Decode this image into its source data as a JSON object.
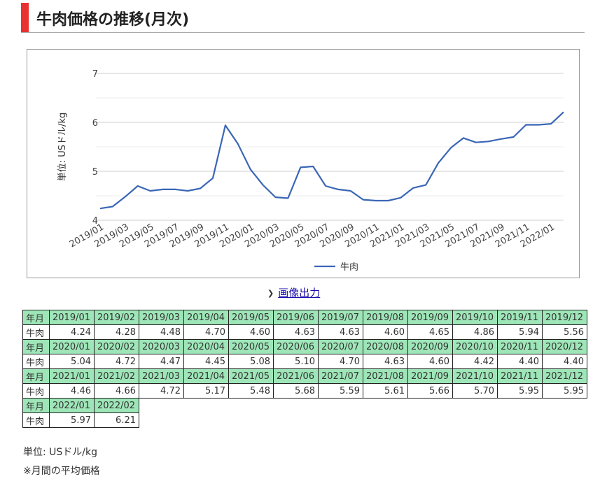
{
  "page_title": "牛肉価格の推移(月次)",
  "export_label": "画像出力",
  "table_header_label": "年月",
  "table_row_label": "牛肉",
  "unit_note": "単位: USドル/kg",
  "avg_note": "※月間の平均価格",
  "colors": {
    "accent": "#e8322f",
    "line": "#3a66b5",
    "header_bg": "#9ee6b8"
  },
  "chart_data": {
    "type": "line",
    "title": "",
    "xlabel": "",
    "ylabel": "単位: USドル/kg",
    "ylim": [
      4,
      7
    ],
    "yticks": [
      4,
      5,
      6,
      7
    ],
    "grid": true,
    "legend_position": "bottom",
    "x_tick_labels": [
      "2019/01",
      "2019/03",
      "2019/05",
      "2019/07",
      "2019/09",
      "2019/11",
      "2020/01",
      "2020/03",
      "2020/05",
      "2020/07",
      "2020/09",
      "2020/11",
      "2021/01",
      "2021/03",
      "2021/05",
      "2021/07",
      "2021/09",
      "2021/11",
      "2022/01"
    ],
    "categories": [
      "2019/01",
      "2019/02",
      "2019/03",
      "2019/04",
      "2019/05",
      "2019/06",
      "2019/07",
      "2019/08",
      "2019/09",
      "2019/10",
      "2019/11",
      "2019/12",
      "2020/01",
      "2020/02",
      "2020/03",
      "2020/04",
      "2020/05",
      "2020/06",
      "2020/07",
      "2020/08",
      "2020/09",
      "2020/10",
      "2020/11",
      "2020/12",
      "2021/01",
      "2021/02",
      "2021/03",
      "2021/04",
      "2021/05",
      "2021/06",
      "2021/07",
      "2021/08",
      "2021/09",
      "2021/10",
      "2021/11",
      "2021/12",
      "2022/01",
      "2022/02"
    ],
    "series": [
      {
        "name": "牛肉",
        "values": [
          4.24,
          4.28,
          4.48,
          4.7,
          4.6,
          4.63,
          4.63,
          4.6,
          4.65,
          4.86,
          5.94,
          5.56,
          5.04,
          4.72,
          4.47,
          4.45,
          5.08,
          5.1,
          4.7,
          4.63,
          4.6,
          4.42,
          4.4,
          4.4,
          4.46,
          4.66,
          4.72,
          5.17,
          5.48,
          5.68,
          5.59,
          5.61,
          5.66,
          5.7,
          5.95,
          5.95,
          5.97,
          6.21
        ],
        "value_labels": [
          "4.24",
          "4.28",
          "4.48",
          "4.70",
          "4.60",
          "4.63",
          "4.63",
          "4.60",
          "4.65",
          "4.86",
          "5.94",
          "5.56",
          "5.04",
          "4.72",
          "4.47",
          "4.45",
          "5.08",
          "5.10",
          "4.70",
          "4.63",
          "4.60",
          "4.42",
          "4.40",
          "4.40",
          "4.46",
          "4.66",
          "4.72",
          "5.17",
          "5.48",
          "5.68",
          "5.59",
          "5.61",
          "5.66",
          "5.70",
          "5.95",
          "5.95",
          "5.97",
          "6.21"
        ]
      }
    ]
  }
}
